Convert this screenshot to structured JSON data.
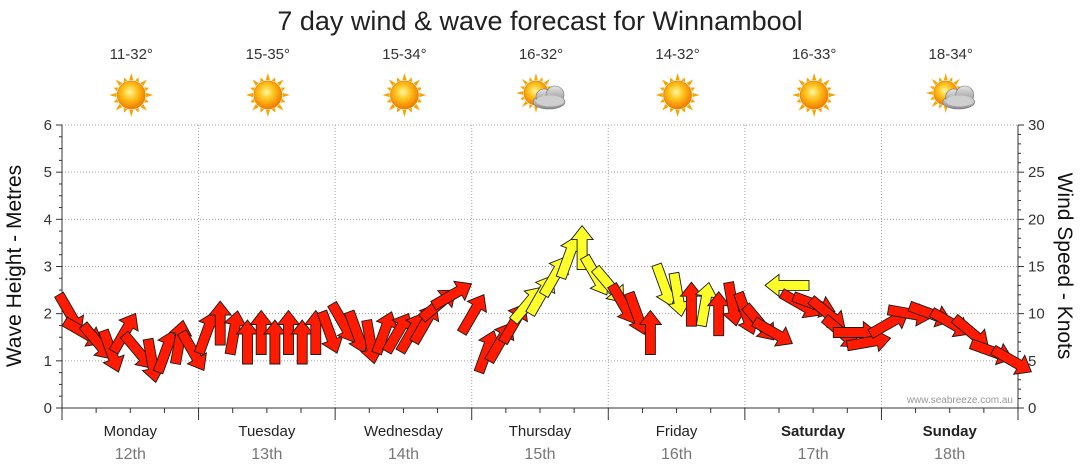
{
  "chart_data": {
    "type": "line",
    "title": "7 day wind & wave forecast for Winnambool",
    "ylabel_left": "Wave Height - Metres",
    "ylabel_right": "Wind Speed - Knots",
    "ylim_left": [
      0,
      6
    ],
    "ylim_right": [
      0,
      30
    ],
    "yticks_left": [
      "0",
      "1",
      "2",
      "3",
      "4",
      "5",
      "6"
    ],
    "yticks_right": [
      "0",
      "5",
      "10",
      "15",
      "20",
      "25",
      "30"
    ],
    "grid": true,
    "credit": "www.seabreeze.com.au",
    "days": [
      {
        "name": "Monday",
        "date": "12th",
        "bold": false,
        "temp": "11-32°",
        "weather": "sunny"
      },
      {
        "name": "Tuesday",
        "date": "13th",
        "bold": false,
        "temp": "15-35°",
        "weather": "sunny"
      },
      {
        "name": "Wednesday",
        "date": "14th",
        "bold": false,
        "temp": "15-34°",
        "weather": "sunny"
      },
      {
        "name": "Thursday",
        "date": "15th",
        "bold": false,
        "temp": "16-32°",
        "weather": "partly-cloudy"
      },
      {
        "name": "Friday",
        "date": "16th",
        "bold": false,
        "temp": "14-32°",
        "weather": "sunny"
      },
      {
        "name": "Saturday",
        "date": "17th",
        "bold": true,
        "temp": "16-33°",
        "weather": "sunny"
      },
      {
        "name": "Sunday",
        "date": "18th",
        "bold": true,
        "temp": "18-34°",
        "weather": "partly-cloudy"
      }
    ],
    "series": [
      {
        "name": "Wind Speed - Knots",
        "colors": {
          "strong": "#ff1a00",
          "moderate": "#ffff2a"
        },
        "points": [
          {
            "t": 0.0,
            "knots": 10,
            "dir": 150,
            "level": "strong"
          },
          {
            "t": 0.1,
            "knots": 8,
            "dir": 120,
            "level": "strong"
          },
          {
            "t": 0.2,
            "knots": 7,
            "dir": 140,
            "level": "strong"
          },
          {
            "t": 0.3,
            "knots": 6,
            "dir": 160,
            "level": "strong"
          },
          {
            "t": 0.4,
            "knots": 8,
            "dir": 30,
            "level": "strong"
          },
          {
            "t": 0.5,
            "knots": 6,
            "dir": 140,
            "level": "strong"
          },
          {
            "t": 0.6,
            "knots": 5,
            "dir": 170,
            "level": "strong"
          },
          {
            "t": 0.7,
            "knots": 6,
            "dir": 20,
            "level": "strong"
          },
          {
            "t": 0.8,
            "knots": 7,
            "dir": 10,
            "level": "strong"
          },
          {
            "t": 0.9,
            "knots": 6,
            "dir": 150,
            "level": "strong"
          },
          {
            "t": 1.0,
            "knots": 8,
            "dir": 20,
            "level": "strong"
          },
          {
            "t": 1.1,
            "knots": 9,
            "dir": 0,
            "level": "strong"
          },
          {
            "t": 1.2,
            "knots": 8,
            "dir": 10,
            "level": "strong"
          },
          {
            "t": 1.3,
            "knots": 7,
            "dir": 0,
            "level": "strong"
          },
          {
            "t": 1.4,
            "knots": 8,
            "dir": 0,
            "level": "strong"
          },
          {
            "t": 1.5,
            "knots": 7,
            "dir": 0,
            "level": "strong"
          },
          {
            "t": 1.6,
            "knots": 8,
            "dir": 0,
            "level": "strong"
          },
          {
            "t": 1.7,
            "knots": 7,
            "dir": 0,
            "level": "strong"
          },
          {
            "t": 1.8,
            "knots": 8,
            "dir": 0,
            "level": "strong"
          },
          {
            "t": 1.9,
            "knots": 8,
            "dir": 160,
            "level": "strong"
          },
          {
            "t": 2.0,
            "knots": 9,
            "dir": 150,
            "level": "strong"
          },
          {
            "t": 2.1,
            "knots": 8,
            "dir": 160,
            "level": "strong"
          },
          {
            "t": 2.2,
            "knots": 7,
            "dir": 170,
            "level": "strong"
          },
          {
            "t": 2.3,
            "knots": 8,
            "dir": 20,
            "level": "strong"
          },
          {
            "t": 2.4,
            "knots": 8,
            "dir": 30,
            "level": "strong"
          },
          {
            "t": 2.5,
            "knots": 8,
            "dir": 30,
            "level": "strong"
          },
          {
            "t": 2.6,
            "knots": 9,
            "dir": 30,
            "level": "strong"
          },
          {
            "t": 2.7,
            "knots": 11,
            "dir": 50,
            "level": "strong"
          },
          {
            "t": 2.8,
            "knots": 12,
            "dir": 60,
            "level": "strong"
          },
          {
            "t": 2.95,
            "knots": 10,
            "dir": 30,
            "level": "strong"
          },
          {
            "t": 3.05,
            "knots": 6,
            "dir": 20,
            "level": "strong"
          },
          {
            "t": 3.15,
            "knots": 7,
            "dir": 30,
            "level": "strong"
          },
          {
            "t": 3.25,
            "knots": 9,
            "dir": 30,
            "level": "strong"
          },
          {
            "t": 3.35,
            "knots": 11,
            "dir": 40,
            "level": "moderate"
          },
          {
            "t": 3.45,
            "knots": 12,
            "dir": 30,
            "level": "moderate"
          },
          {
            "t": 3.55,
            "knots": 14,
            "dir": 30,
            "level": "moderate"
          },
          {
            "t": 3.65,
            "knots": 16,
            "dir": 20,
            "level": "moderate"
          },
          {
            "t": 3.75,
            "knots": 17,
            "dir": 0,
            "level": "moderate"
          },
          {
            "t": 3.85,
            "knots": 14,
            "dir": 150,
            "level": "moderate"
          },
          {
            "t": 3.95,
            "knots": 13,
            "dir": 140,
            "level": "moderate"
          },
          {
            "t": 4.05,
            "knots": 11,
            "dir": 150,
            "level": "strong"
          },
          {
            "t": 4.15,
            "knots": 10,
            "dir": 160,
            "level": "strong"
          },
          {
            "t": 4.25,
            "knots": 8,
            "dir": 0,
            "level": "strong"
          },
          {
            "t": 4.35,
            "knots": 13,
            "dir": 160,
            "level": "moderate"
          },
          {
            "t": 4.45,
            "knots": 12,
            "dir": 170,
            "level": "moderate"
          },
          {
            "t": 4.55,
            "knots": 11,
            "dir": 0,
            "level": "strong"
          },
          {
            "t": 4.65,
            "knots": 11,
            "dir": 10,
            "level": "moderate"
          },
          {
            "t": 4.75,
            "knots": 10,
            "dir": 0,
            "level": "strong"
          },
          {
            "t": 4.85,
            "knots": 11,
            "dir": 170,
            "level": "strong"
          },
          {
            "t": 4.95,
            "knots": 10,
            "dir": 160,
            "level": "strong"
          },
          {
            "t": 5.05,
            "knots": 9,
            "dir": 140,
            "level": "strong"
          },
          {
            "t": 5.15,
            "knots": 8,
            "dir": 120,
            "level": "strong"
          },
          {
            "t": 5.25,
            "knots": 13,
            "dir": 270,
            "level": "moderate"
          },
          {
            "t": 5.35,
            "knots": 11,
            "dir": 120,
            "level": "strong"
          },
          {
            "t": 5.45,
            "knots": 11,
            "dir": 110,
            "level": "strong"
          },
          {
            "t": 5.55,
            "knots": 10,
            "dir": 130,
            "level": "strong"
          },
          {
            "t": 5.65,
            "knots": 8,
            "dir": 130,
            "level": "strong"
          },
          {
            "t": 5.75,
            "knots": 8,
            "dir": 90,
            "level": "strong"
          },
          {
            "t": 5.85,
            "knots": 7,
            "dir": 80,
            "level": "strong"
          },
          {
            "t": 6.0,
            "knots": 9,
            "dir": 60,
            "level": "strong"
          },
          {
            "t": 6.15,
            "knots": 10,
            "dir": 100,
            "level": "strong"
          },
          {
            "t": 6.3,
            "knots": 10,
            "dir": 110,
            "level": "strong"
          },
          {
            "t": 6.45,
            "knots": 9,
            "dir": 120,
            "level": "strong"
          },
          {
            "t": 6.6,
            "knots": 8,
            "dir": 130,
            "level": "strong"
          },
          {
            "t": 6.75,
            "knots": 6,
            "dir": 110,
            "level": "strong"
          },
          {
            "t": 6.9,
            "knots": 5,
            "dir": 120,
            "level": "strong"
          }
        ]
      }
    ]
  }
}
